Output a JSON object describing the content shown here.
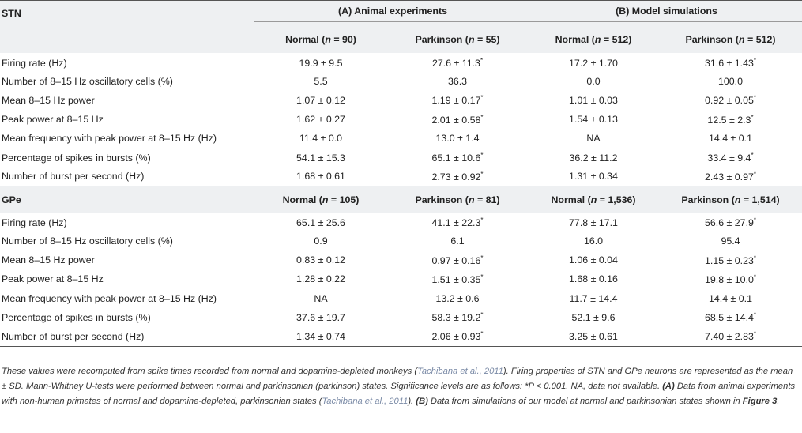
{
  "columns": {
    "group_a": "(A) Animal experiments",
    "group_b": "(B) Model simulations"
  },
  "stn": {
    "title": "STN",
    "headers": [
      "Normal (n = 90)",
      "Parkinson (n = 55)",
      "Normal (n = 512)",
      "Parkinson (n = 512)"
    ],
    "rows": [
      {
        "label": "Firing rate (Hz)",
        "values": [
          "19.9 ± 9.5",
          "27.6 ± 11.3*",
          "17.2 ± 1.70",
          "31.6 ± 1.43*"
        ]
      },
      {
        "label": "Number of 8–15 Hz oscillatory cells (%)",
        "values": [
          "5.5",
          "36.3",
          "0.0",
          "100.0"
        ]
      },
      {
        "label": "Mean 8–15 Hz power",
        "values": [
          "1.07 ± 0.12",
          "1.19 ± 0.17*",
          "1.01 ± 0.03",
          "0.92 ± 0.05*"
        ]
      },
      {
        "label": "Peak power at 8–15 Hz",
        "values": [
          "1.62 ± 0.27",
          "2.01 ± 0.58*",
          "1.54 ± 0.13",
          "12.5 ± 2.3*"
        ]
      },
      {
        "label": "Mean frequency with peak power at 8–15 Hz (Hz)",
        "values": [
          "11.4 ± 0.0",
          "13.0 ± 1.4",
          "NA",
          "14.4 ± 0.1"
        ]
      },
      {
        "label": "Percentage of spikes in bursts (%)",
        "values": [
          "54.1 ± 15.3",
          "65.1 ± 10.6*",
          "36.2 ± 11.2",
          "33.4 ± 9.4*"
        ]
      },
      {
        "label": "Number of burst per second (Hz)",
        "values": [
          "1.68 ± 0.61",
          "2.73 ± 0.92*",
          "1.31 ± 0.34",
          "2.43 ± 0.97*"
        ]
      }
    ]
  },
  "gpe": {
    "title": "GPe",
    "headers": [
      "Normal (n = 105)",
      "Parkinson (n = 81)",
      "Normal (n = 1,536)",
      "Parkinson (n = 1,514)"
    ],
    "rows": [
      {
        "label": "Firing rate (Hz)",
        "values": [
          "65.1 ± 25.6",
          "41.1 ± 22.3*",
          "77.8 ± 17.1",
          "56.6 ± 27.9*"
        ]
      },
      {
        "label": "Number of 8–15 Hz oscillatory cells (%)",
        "values": [
          "0.9",
          "6.1",
          "16.0",
          "95.4"
        ]
      },
      {
        "label": "Mean 8–15 Hz power",
        "values": [
          "0.83 ± 0.12",
          "0.97 ± 0.16*",
          "1.06 ± 0.04",
          "1.15 ± 0.23*"
        ]
      },
      {
        "label": "Peak power at 8–15 Hz",
        "values": [
          "1.28 ± 0.22",
          "1.51 ± 0.35*",
          "1.68 ± 0.16",
          "19.8 ± 10.0*"
        ]
      },
      {
        "label": "Mean frequency with peak power at 8–15 Hz (Hz)",
        "values": [
          "NA",
          "13.2 ± 0.6",
          "11.7 ± 14.4",
          "14.4 ± 0.1"
        ]
      },
      {
        "label": "Percentage of spikes in bursts (%)",
        "values": [
          "37.6 ± 19.7",
          "58.3 ± 19.2*",
          "52.1 ± 9.6",
          "68.5 ± 14.4*"
        ]
      },
      {
        "label": "Number of burst per second (Hz)",
        "values": [
          "1.34 ± 0.74",
          "2.06 ± 0.93*",
          "3.25 ± 0.61",
          "7.40 ± 2.83*"
        ]
      }
    ]
  },
  "footnote": {
    "p1": "These values were recomputed from spike times recorded from normal and dopamine-depleted monkeys (",
    "ref1": "Tachibana et al., 2011",
    "p2": "). Firing properties of STN and GPe neurons are represented as the mean ± SD. Mann-Whitney U-tests were performed between normal and parkinsonian (parkinson) states. Significance levels are as follows: *P < 0.001. NA, data not available. ",
    "a_label": "(A)",
    "p3": " Data from animal experiments with non-human primates of normal and dopamine-depleted, parkinsonian states (",
    "ref2": "Tachibana et al., 2011",
    "p4": "). ",
    "b_label": "(B)",
    "p5": " Data from simulations of our model at normal and parkinsonian states shown in ",
    "fig": "Figure 3",
    "p6": "."
  }
}
